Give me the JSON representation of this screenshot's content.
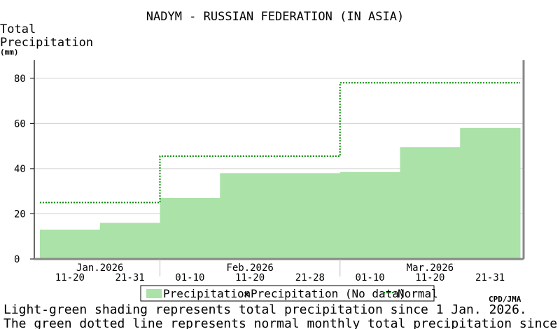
{
  "chart_data": {
    "type": "area",
    "title": "NADYM - RUSSIAN FEDERATION (IN ASIA)",
    "ylabel_line1": "Total",
    "ylabel_line2": "Precipitation",
    "ylabel_unit": "(mm)",
    "ylim": [
      0,
      80
    ],
    "yticks": [
      "0",
      "20",
      "40",
      "60",
      "80"
    ],
    "grid": true,
    "periods": [
      "11-20",
      "21-31",
      "01-10",
      "11-20",
      "21-28",
      "01-10",
      "11-20",
      "21-31"
    ],
    "months": [
      "Jan.2026",
      "Feb.2026",
      "Mar.2026"
    ],
    "series": [
      {
        "name": "Precipitation",
        "type": "step-area",
        "color": "#aae2a8",
        "values": [
          13,
          16,
          27,
          38,
          38,
          38.5,
          49.5,
          58
        ]
      },
      {
        "name": "Normal",
        "type": "step-dotted",
        "color": "#008800",
        "values": [
          25,
          25,
          45.5,
          45.5,
          45.5,
          78,
          78,
          78
        ]
      }
    ],
    "legend": {
      "position": "bottom",
      "precip_label": "Precipitation",
      "nodata_label": "Precipitation (No data)",
      "normal_label": "Normal"
    },
    "credit": "CPD/JMA",
    "note1": "Light-green shading represents total precipitation since 1 Jan. 2026.",
    "note2": "The green dotted line represents normal monthly total precipitation since Jan."
  }
}
